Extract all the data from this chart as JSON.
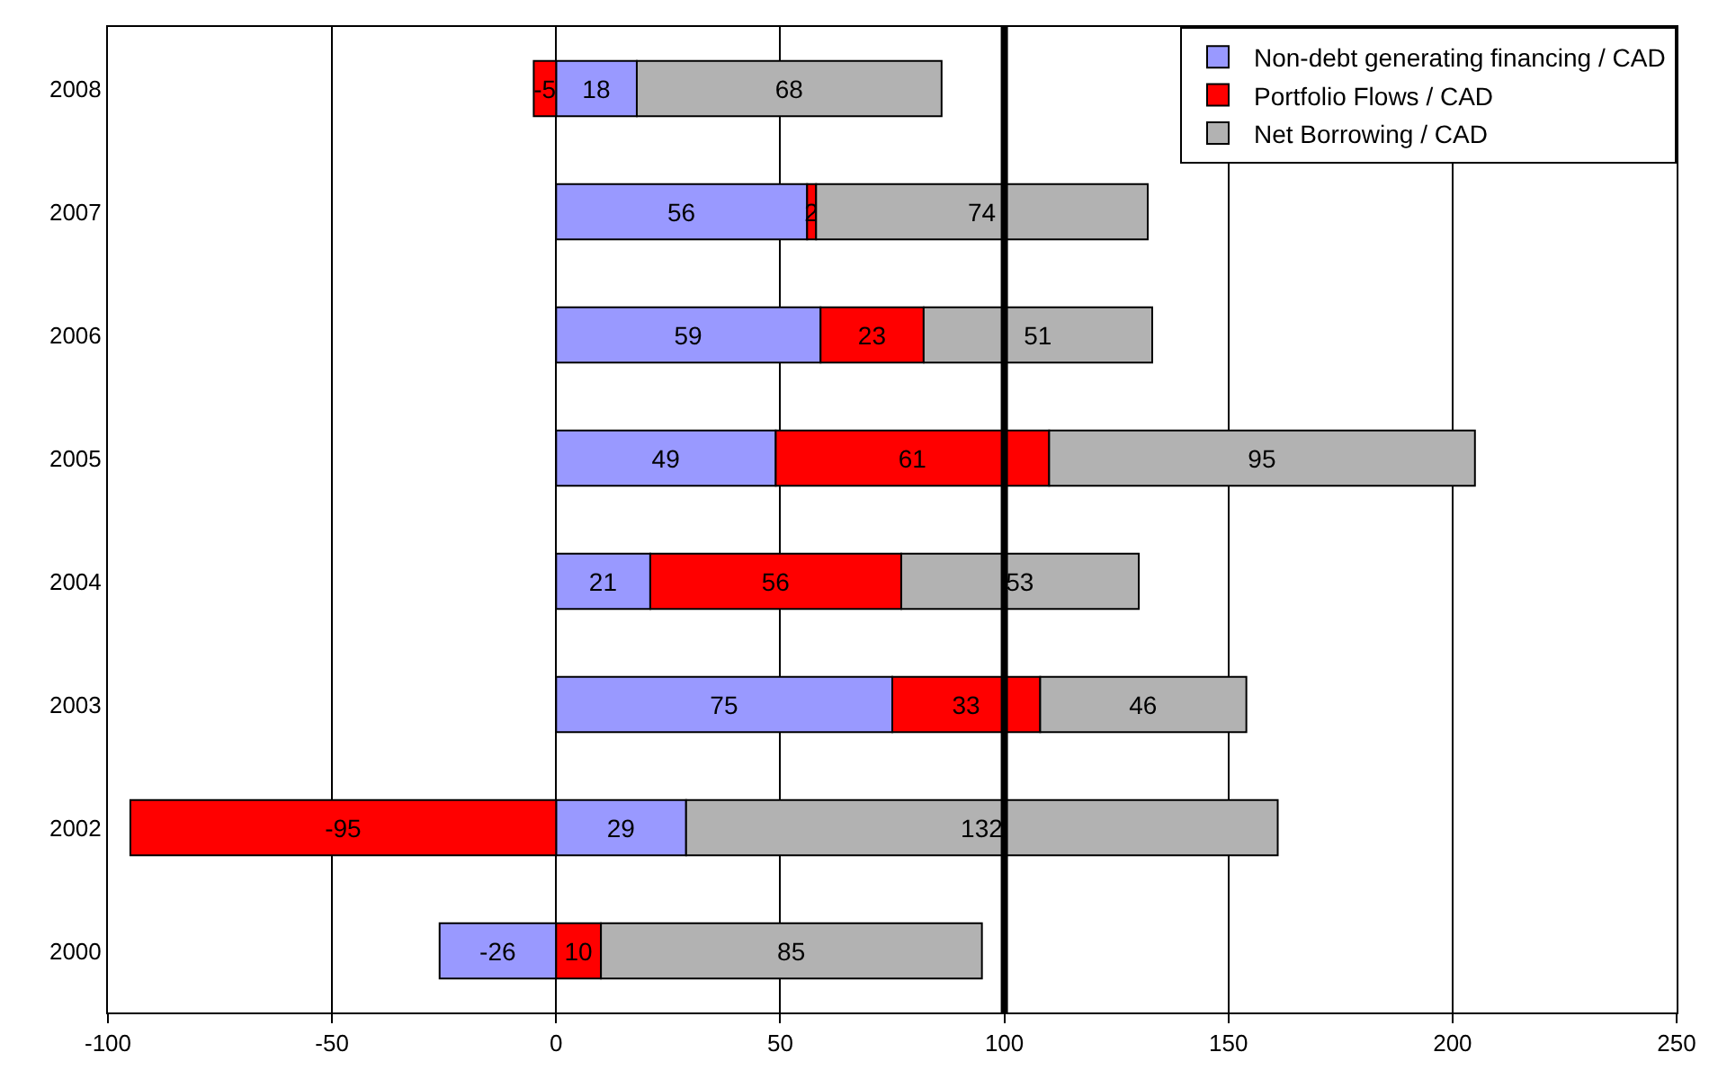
{
  "chart_data": {
    "type": "bar",
    "orientation": "horizontal",
    "stacked": true,
    "data_labels": true,
    "categories": [
      "2008",
      "2007",
      "2006",
      "2005",
      "2004",
      "2003",
      "2002",
      "2000"
    ],
    "series": [
      {
        "name": "Non-debt generating financing / CAD",
        "color": "#9999ff",
        "values": [
          18,
          56,
          59,
          49,
          21,
          75,
          29,
          -26
        ]
      },
      {
        "name": "Portfolio Flows / CAD",
        "color": "#ff0000",
        "values": [
          -5,
          2,
          23,
          61,
          56,
          33,
          -95,
          10
        ]
      },
      {
        "name": "Net Borrowing / CAD",
        "color": "#b2b2b2",
        "values": [
          68,
          74,
          51,
          95,
          53,
          46,
          132,
          85
        ]
      }
    ],
    "xlim": [
      -100,
      250
    ],
    "xticks": [
      -100,
      -50,
      0,
      50,
      100,
      150,
      200,
      250
    ],
    "grid": "x",
    "legend": "top right",
    "ref_lines": [
      {
        "axis": "x",
        "value": 100,
        "color": "#000000"
      }
    ]
  }
}
